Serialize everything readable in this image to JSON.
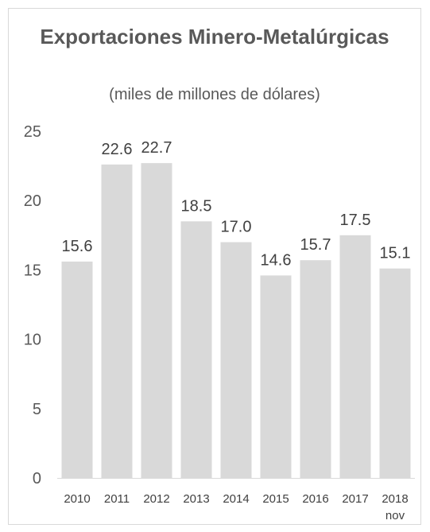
{
  "chart_data": {
    "type": "bar",
    "title": "Exportaciones Minero-Metalúrgicas",
    "subtitle": "(miles de millones de dólares)",
    "categories": [
      "2010",
      "2011",
      "2012",
      "2013",
      "2014",
      "2015",
      "2016",
      "2017",
      "2018"
    ],
    "category_sublabels": [
      "",
      "",
      "",
      "",
      "",
      "",
      "",
      "",
      "nov"
    ],
    "values": [
      15.6,
      22.6,
      22.7,
      18.5,
      17.0,
      14.6,
      15.7,
      17.5,
      15.1
    ],
    "data_labels": [
      "15.6",
      "22.6",
      "22.7",
      "18.5",
      "17.0",
      "14.6",
      "15.7",
      "17.5",
      "15.1"
    ],
    "yticks": [
      "0",
      "5",
      "10",
      "15",
      "20",
      "25"
    ],
    "ylim": [
      0,
      25
    ],
    "grid": false,
    "bar_color": "#d9d9d9"
  }
}
